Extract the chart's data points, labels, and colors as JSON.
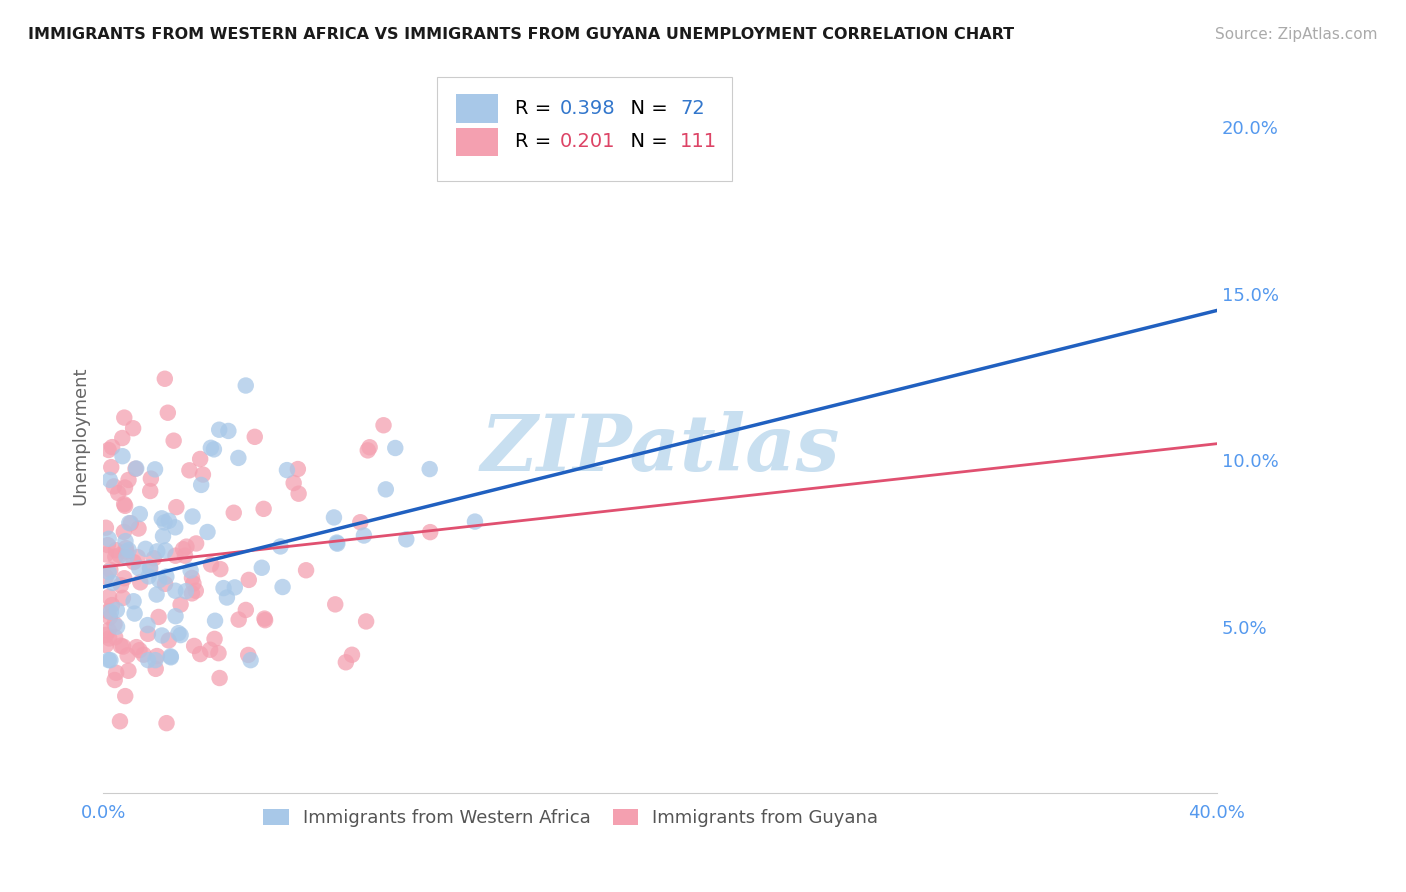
{
  "title": "IMMIGRANTS FROM WESTERN AFRICA VS IMMIGRANTS FROM GUYANA UNEMPLOYMENT CORRELATION CHART",
  "source": "Source: ZipAtlas.com",
  "ylabel": "Unemployment",
  "ytick_labels": [
    "5.0%",
    "10.0%",
    "15.0%",
    "20.0%"
  ],
  "ytick_values": [
    0.05,
    0.1,
    0.15,
    0.2
  ],
  "xlim": [
    0.0,
    0.4
  ],
  "ylim": [
    0.0,
    0.215
  ],
  "blue_R": "0.398",
  "blue_N": "72",
  "pink_R": "0.201",
  "pink_N": "111",
  "blue_label": "Immigrants from Western Africa",
  "pink_label": "Immigrants from Guyana",
  "blue_scatter_color": "#a8c8e8",
  "pink_scatter_color": "#f4a0b0",
  "blue_line_color": "#2060c0",
  "pink_line_color": "#e05070",
  "title_color": "#1a1a1a",
  "source_color": "#aaaaaa",
  "axis_tick_color": "#5599ee",
  "background_color": "#ffffff",
  "grid_color": "#cccccc",
  "watermark_text": "ZIPatlas",
  "watermark_color": "#c8dff0",
  "blue_line_start_y": 0.062,
  "blue_line_end_y": 0.145,
  "pink_line_start_y": 0.068,
  "pink_line_end_y": 0.105,
  "legend_R_color": "#000000",
  "legend_val_blue": "#3377cc",
  "legend_val_pink": "#dd4466"
}
